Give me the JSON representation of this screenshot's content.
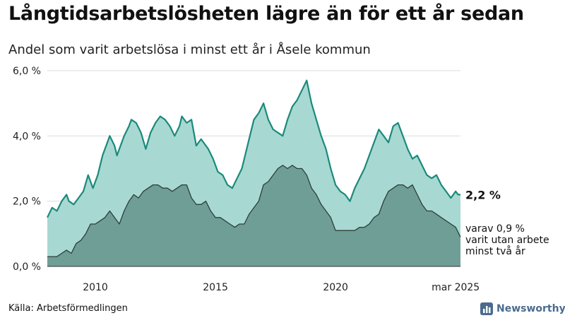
{
  "title": "Långtidsarbetslösheten lägre än för ett år sedan",
  "subtitle": "Andel som varit arbetslösa i minst ett år i Åsele kommun",
  "source": "Källa: Arbetsförmedlingen",
  "brand": {
    "name": "Newsworthy",
    "icon": "bar-chart-logo-icon"
  },
  "colors": {
    "series1_fill": "#a8d8d2",
    "series1_line": "#1a8a7a",
    "series2_fill": "#6f9e97",
    "series2_line": "#2c3e3a",
    "grid": "#dddddd",
    "brand": "#4b6b8e"
  },
  "chart_data": {
    "type": "area",
    "grid": true,
    "ylim": [
      0,
      6
    ],
    "xlim": [
      2008.0,
      2025.2
    ],
    "y_ticks": [
      {
        "value": 0,
        "label": "0,0 %"
      },
      {
        "value": 2,
        "label": "2,0 %"
      },
      {
        "value": 4,
        "label": "4,0 %"
      },
      {
        "value": 6,
        "label": "6,0 %"
      }
    ],
    "x_ticks": [
      {
        "value": 2010,
        "label": "2010"
      },
      {
        "value": 2015,
        "label": "2015"
      },
      {
        "value": 2020,
        "label": "2020"
      },
      {
        "value": 2025,
        "label": "mar 2025"
      }
    ],
    "series": [
      {
        "end_label": "2,2 %",
        "points": [
          [
            2008.0,
            1.5
          ],
          [
            2008.2,
            1.8
          ],
          [
            2008.4,
            1.7
          ],
          [
            2008.6,
            2.0
          ],
          [
            2008.8,
            2.2
          ],
          [
            2008.9,
            2.0
          ],
          [
            2009.1,
            1.9
          ],
          [
            2009.3,
            2.1
          ],
          [
            2009.5,
            2.3
          ],
          [
            2009.7,
            2.8
          ],
          [
            2009.9,
            2.4
          ],
          [
            2010.1,
            2.8
          ],
          [
            2010.3,
            3.4
          ],
          [
            2010.5,
            3.8
          ],
          [
            2010.6,
            4.0
          ],
          [
            2010.8,
            3.7
          ],
          [
            2010.9,
            3.4
          ],
          [
            2011.2,
            4.0
          ],
          [
            2011.4,
            4.3
          ],
          [
            2011.5,
            4.5
          ],
          [
            2011.7,
            4.4
          ],
          [
            2011.9,
            4.1
          ],
          [
            2012.1,
            3.6
          ],
          [
            2012.3,
            4.1
          ],
          [
            2012.5,
            4.4
          ],
          [
            2012.7,
            4.6
          ],
          [
            2012.9,
            4.5
          ],
          [
            2013.1,
            4.3
          ],
          [
            2013.3,
            4.0
          ],
          [
            2013.5,
            4.3
          ],
          [
            2013.6,
            4.6
          ],
          [
            2013.8,
            4.4
          ],
          [
            2014.0,
            4.5
          ],
          [
            2014.2,
            3.7
          ],
          [
            2014.4,
            3.9
          ],
          [
            2014.7,
            3.6
          ],
          [
            2014.9,
            3.3
          ],
          [
            2015.1,
            2.9
          ],
          [
            2015.3,
            2.8
          ],
          [
            2015.5,
            2.5
          ],
          [
            2015.7,
            2.4
          ],
          [
            2015.9,
            2.7
          ],
          [
            2016.1,
            3.0
          ],
          [
            2016.4,
            3.9
          ],
          [
            2016.6,
            4.5
          ],
          [
            2016.8,
            4.7
          ],
          [
            2017.0,
            5.0
          ],
          [
            2017.2,
            4.5
          ],
          [
            2017.4,
            4.2
          ],
          [
            2017.6,
            4.1
          ],
          [
            2017.8,
            4.0
          ],
          [
            2018.0,
            4.5
          ],
          [
            2018.2,
            4.9
          ],
          [
            2018.4,
            5.1
          ],
          [
            2018.6,
            5.4
          ],
          [
            2018.8,
            5.7
          ],
          [
            2019.0,
            5.0
          ],
          [
            2019.2,
            4.5
          ],
          [
            2019.4,
            4.0
          ],
          [
            2019.6,
            3.6
          ],
          [
            2019.8,
            3.0
          ],
          [
            2020.0,
            2.5
          ],
          [
            2020.2,
            2.3
          ],
          [
            2020.4,
            2.2
          ],
          [
            2020.6,
            2.0
          ],
          [
            2020.8,
            2.4
          ],
          [
            2021.0,
            2.7
          ],
          [
            2021.2,
            3.0
          ],
          [
            2021.4,
            3.4
          ],
          [
            2021.6,
            3.8
          ],
          [
            2021.8,
            4.2
          ],
          [
            2022.0,
            4.0
          ],
          [
            2022.2,
            3.8
          ],
          [
            2022.4,
            4.3
          ],
          [
            2022.6,
            4.4
          ],
          [
            2022.8,
            4.0
          ],
          [
            2023.0,
            3.6
          ],
          [
            2023.2,
            3.3
          ],
          [
            2023.4,
            3.4
          ],
          [
            2023.6,
            3.1
          ],
          [
            2023.8,
            2.8
          ],
          [
            2024.0,
            2.7
          ],
          [
            2024.2,
            2.8
          ],
          [
            2024.4,
            2.5
          ],
          [
            2024.6,
            2.3
          ],
          [
            2024.8,
            2.1
          ],
          [
            2025.0,
            2.3
          ],
          [
            2025.1,
            2.2
          ],
          [
            2025.2,
            2.2
          ]
        ]
      },
      {
        "end_label": "varav 0,9 %\nvarit utan arbete\nminst två år",
        "points": [
          [
            2008.0,
            0.3
          ],
          [
            2008.4,
            0.3
          ],
          [
            2008.6,
            0.4
          ],
          [
            2008.8,
            0.5
          ],
          [
            2009.0,
            0.4
          ],
          [
            2009.2,
            0.7
          ],
          [
            2009.4,
            0.8
          ],
          [
            2009.6,
            1.0
          ],
          [
            2009.8,
            1.3
          ],
          [
            2010.0,
            1.3
          ],
          [
            2010.2,
            1.4
          ],
          [
            2010.4,
            1.5
          ],
          [
            2010.6,
            1.7
          ],
          [
            2010.8,
            1.5
          ],
          [
            2011.0,
            1.3
          ],
          [
            2011.2,
            1.7
          ],
          [
            2011.4,
            2.0
          ],
          [
            2011.6,
            2.2
          ],
          [
            2011.8,
            2.1
          ],
          [
            2012.0,
            2.3
          ],
          [
            2012.2,
            2.4
          ],
          [
            2012.4,
            2.5
          ],
          [
            2012.6,
            2.5
          ],
          [
            2012.8,
            2.4
          ],
          [
            2013.0,
            2.4
          ],
          [
            2013.2,
            2.3
          ],
          [
            2013.4,
            2.4
          ],
          [
            2013.6,
            2.5
          ],
          [
            2013.8,
            2.5
          ],
          [
            2014.0,
            2.1
          ],
          [
            2014.2,
            1.9
          ],
          [
            2014.4,
            1.9
          ],
          [
            2014.6,
            2.0
          ],
          [
            2014.8,
            1.7
          ],
          [
            2015.0,
            1.5
          ],
          [
            2015.2,
            1.5
          ],
          [
            2015.4,
            1.4
          ],
          [
            2015.6,
            1.3
          ],
          [
            2015.8,
            1.2
          ],
          [
            2016.0,
            1.3
          ],
          [
            2016.2,
            1.3
          ],
          [
            2016.4,
            1.6
          ],
          [
            2016.6,
            1.8
          ],
          [
            2016.8,
            2.0
          ],
          [
            2017.0,
            2.5
          ],
          [
            2017.2,
            2.6
          ],
          [
            2017.4,
            2.8
          ],
          [
            2017.6,
            3.0
          ],
          [
            2017.8,
            3.1
          ],
          [
            2018.0,
            3.0
          ],
          [
            2018.2,
            3.1
          ],
          [
            2018.4,
            3.0
          ],
          [
            2018.6,
            3.0
          ],
          [
            2018.8,
            2.8
          ],
          [
            2019.0,
            2.4
          ],
          [
            2019.2,
            2.2
          ],
          [
            2019.4,
            1.9
          ],
          [
            2019.6,
            1.7
          ],
          [
            2019.8,
            1.5
          ],
          [
            2020.0,
            1.1
          ],
          [
            2020.2,
            1.1
          ],
          [
            2020.4,
            1.1
          ],
          [
            2020.6,
            1.1
          ],
          [
            2020.8,
            1.1
          ],
          [
            2021.0,
            1.2
          ],
          [
            2021.2,
            1.2
          ],
          [
            2021.4,
            1.3
          ],
          [
            2021.6,
            1.5
          ],
          [
            2021.8,
            1.6
          ],
          [
            2022.0,
            2.0
          ],
          [
            2022.2,
            2.3
          ],
          [
            2022.4,
            2.4
          ],
          [
            2022.6,
            2.5
          ],
          [
            2022.8,
            2.5
          ],
          [
            2023.0,
            2.4
          ],
          [
            2023.2,
            2.5
          ],
          [
            2023.4,
            2.2
          ],
          [
            2023.6,
            1.9
          ],
          [
            2023.8,
            1.7
          ],
          [
            2024.0,
            1.7
          ],
          [
            2024.2,
            1.6
          ],
          [
            2024.4,
            1.5
          ],
          [
            2024.6,
            1.4
          ],
          [
            2024.8,
            1.3
          ],
          [
            2025.0,
            1.2
          ],
          [
            2025.2,
            0.9
          ]
        ]
      }
    ]
  }
}
